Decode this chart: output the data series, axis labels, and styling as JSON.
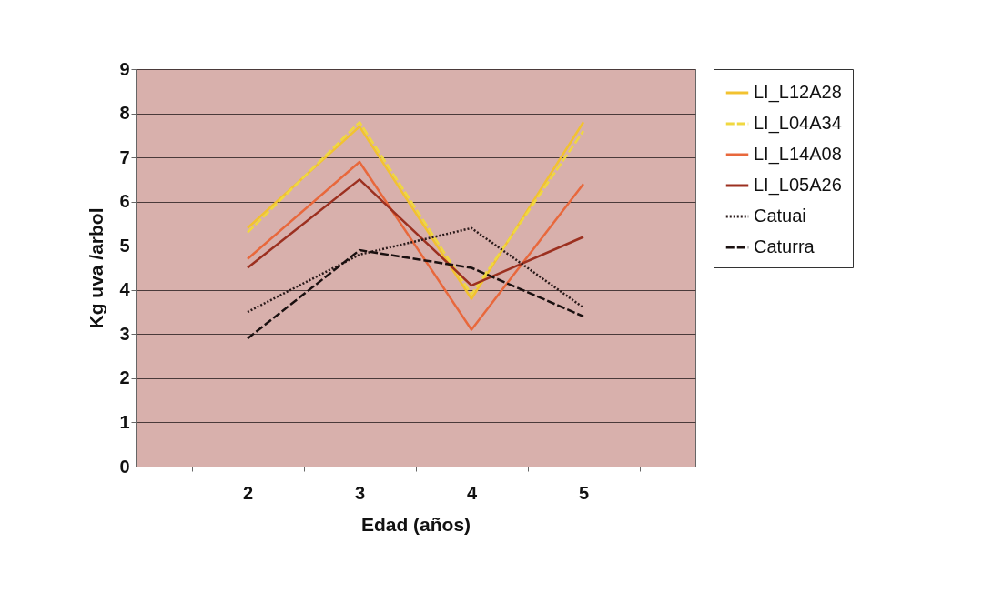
{
  "chart_data": {
    "type": "line",
    "xlabel": "Edad (años)",
    "ylabel": "Kg uva /arbol",
    "categories": [
      "2",
      "3",
      "4",
      "5"
    ],
    "series": [
      {
        "name": "LI_L12A28",
        "color": "#f2c230",
        "line_style": "solid",
        "values": [
          5.4,
          7.7,
          3.8,
          7.8
        ]
      },
      {
        "name": "LI_L04A34",
        "color": "#f0d840",
        "line_style": "dashed",
        "values": [
          5.3,
          7.8,
          3.9,
          7.6
        ]
      },
      {
        "name": "LI_L14A08",
        "color": "#e8683c",
        "line_style": "solid",
        "values": [
          4.7,
          6.9,
          3.1,
          6.4
        ]
      },
      {
        "name": "LI_L05A26",
        "color": "#9c3020",
        "line_style": "solid",
        "values": [
          4.5,
          6.5,
          4.1,
          5.2
        ]
      },
      {
        "name": "Catuai",
        "color": "#2a1a1a",
        "line_style": "dotted",
        "values": [
          3.5,
          4.8,
          5.4,
          3.6
        ]
      },
      {
        "name": "Caturra",
        "color": "#1a1010",
        "line_style": "dashed",
        "values": [
          2.9,
          4.9,
          4.5,
          3.4
        ]
      }
    ],
    "ylim": [
      0,
      9
    ],
    "yticks": [
      0,
      1,
      2,
      3,
      4,
      5,
      6,
      7,
      8,
      9
    ],
    "grid": "y",
    "legend": "right",
    "marker": "none"
  }
}
